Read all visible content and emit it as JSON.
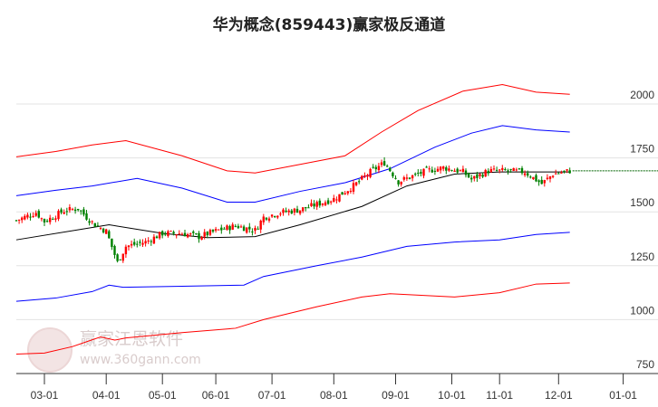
{
  "chart_data": {
    "type": "candlestick",
    "title": "华为概念(859443)赢家极反通道",
    "ylim": [
      750,
      2100
    ],
    "yticks": [
      750,
      1000,
      1250,
      1500,
      1750,
      2000
    ],
    "xticks": [
      {
        "label": "03-01",
        "i": 10
      },
      {
        "label": "04-01",
        "i": 32
      },
      {
        "label": "05-01",
        "i": 52
      },
      {
        "label": "06-01",
        "i": 71
      },
      {
        "label": "07-01",
        "i": 91
      },
      {
        "label": "08-01",
        "i": 113
      },
      {
        "label": "09-01",
        "i": 135
      },
      {
        "label": "10-01",
        "i": 155
      },
      {
        "label": "11-01",
        "i": 172
      },
      {
        "label": "12-01",
        "i": 193
      },
      {
        "label": "01-01",
        "i": 216
      }
    ],
    "x_range": [
      0,
      228
    ],
    "close_anchors": [
      [
        0,
        1460
      ],
      [
        7,
        1497
      ],
      [
        10,
        1455
      ],
      [
        17,
        1505
      ],
      [
        22,
        1515
      ],
      [
        25,
        1475
      ],
      [
        28,
        1440
      ],
      [
        32,
        1410
      ],
      [
        36,
        1265
      ],
      [
        39,
        1340
      ],
      [
        46,
        1360
      ],
      [
        52,
        1400
      ],
      [
        59,
        1400
      ],
      [
        65,
        1385
      ],
      [
        72,
        1415
      ],
      [
        78,
        1435
      ],
      [
        85,
        1415
      ],
      [
        88,
        1475
      ],
      [
        94,
        1497
      ],
      [
        101,
        1510
      ],
      [
        107,
        1535
      ],
      [
        113,
        1560
      ],
      [
        120,
        1620
      ],
      [
        126,
        1685
      ],
      [
        131,
        1728
      ],
      [
        136,
        1640
      ],
      [
        141,
        1665
      ],
      [
        146,
        1690
      ],
      [
        152,
        1705
      ],
      [
        159,
        1685
      ],
      [
        162,
        1650
      ],
      [
        168,
        1690
      ],
      [
        175,
        1690
      ],
      [
        181,
        1685
      ],
      [
        187,
        1630
      ],
      [
        191,
        1675
      ],
      [
        197,
        1690
      ]
    ],
    "series": [
      {
        "name": "upper-red",
        "color": "#ff0000",
        "points": [
          [
            0,
            1755
          ],
          [
            14,
            1780
          ],
          [
            27,
            1810
          ],
          [
            39,
            1830
          ],
          [
            59,
            1760
          ],
          [
            75,
            1690
          ],
          [
            85,
            1680
          ],
          [
            101,
            1720
          ],
          [
            117,
            1760
          ],
          [
            130,
            1870
          ],
          [
            143,
            1970
          ],
          [
            159,
            2060
          ],
          [
            173,
            2090
          ],
          [
            185,
            2055
          ],
          [
            197,
            2045
          ]
        ]
      },
      {
        "name": "upper-blue",
        "color": "#0000ff",
        "points": [
          [
            0,
            1575
          ],
          [
            14,
            1600
          ],
          [
            27,
            1620
          ],
          [
            43,
            1655
          ],
          [
            59,
            1610
          ],
          [
            75,
            1545
          ],
          [
            85,
            1545
          ],
          [
            101,
            1595
          ],
          [
            117,
            1635
          ],
          [
            133,
            1700
          ],
          [
            149,
            1800
          ],
          [
            162,
            1865
          ],
          [
            173,
            1900
          ],
          [
            185,
            1880
          ],
          [
            197,
            1870
          ]
        ]
      },
      {
        "name": "middle-black",
        "color": "#000000",
        "points": [
          [
            0,
            1370
          ],
          [
            33,
            1440
          ],
          [
            52,
            1400
          ],
          [
            68,
            1380
          ],
          [
            85,
            1385
          ],
          [
            101,
            1440
          ],
          [
            123,
            1525
          ],
          [
            139,
            1620
          ],
          [
            156,
            1675
          ],
          [
            172,
            1685
          ],
          [
            197,
            1685
          ]
        ]
      },
      {
        "name": "lower-blue",
        "color": "#0000ff",
        "points": [
          [
            0,
            1085
          ],
          [
            14,
            1100
          ],
          [
            27,
            1130
          ],
          [
            33,
            1160
          ],
          [
            38,
            1150
          ],
          [
            59,
            1155
          ],
          [
            81,
            1160
          ],
          [
            88,
            1200
          ],
          [
            107,
            1250
          ],
          [
            123,
            1290
          ],
          [
            139,
            1340
          ],
          [
            156,
            1360
          ],
          [
            172,
            1370
          ],
          [
            185,
            1395
          ],
          [
            197,
            1405
          ]
        ]
      },
      {
        "name": "lower-red",
        "color": "#ff0000",
        "points": [
          [
            0,
            840
          ],
          [
            10,
            845
          ],
          [
            20,
            875
          ],
          [
            30,
            920
          ],
          [
            35,
            905
          ],
          [
            39,
            915
          ],
          [
            59,
            940
          ],
          [
            78,
            960
          ],
          [
            88,
            1000
          ],
          [
            107,
            1060
          ],
          [
            123,
            1105
          ],
          [
            133,
            1120
          ],
          [
            156,
            1105
          ],
          [
            172,
            1125
          ],
          [
            185,
            1165
          ],
          [
            197,
            1170
          ]
        ]
      }
    ],
    "last_level": 1690,
    "up_color": "#ff0000",
    "down_color": "#008000"
  },
  "watermark": {
    "brand": "赢家江恩软件",
    "url": "www.360gann.com",
    "seal": "江赢恩家"
  }
}
